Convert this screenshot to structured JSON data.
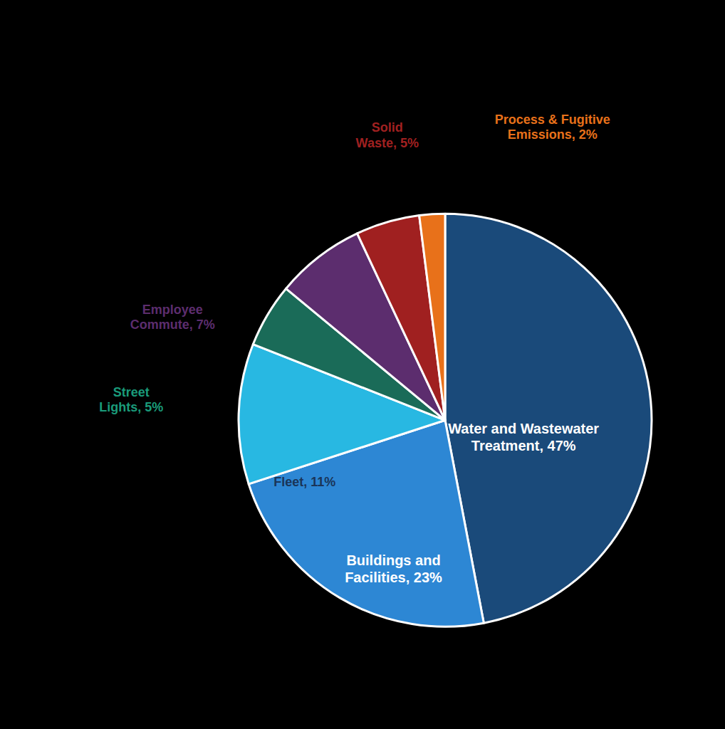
{
  "chart_data": {
    "type": "pie",
    "categories": [
      "Water and Wastewater\nTreatment,",
      "Buildings and\nFacilities,",
      "Fleet,",
      "Street\nLights,",
      "Employee\nCommute,",
      "Solid\nWaste,",
      "Process & Fugitive\nEmissions,"
    ],
    "values": [
      47,
      23,
      11,
      5,
      7,
      5,
      2
    ],
    "value_labels": [
      "47%",
      "23%",
      "11%",
      "5%",
      "7%",
      "5%",
      "2%"
    ],
    "data_labels": true,
    "colors": [
      "#1a4a7a",
      "#2d87d4",
      "#28b8e2",
      "#1a6b58",
      "#5c2d6e",
      "#a02020",
      "#e8711a"
    ]
  }
}
